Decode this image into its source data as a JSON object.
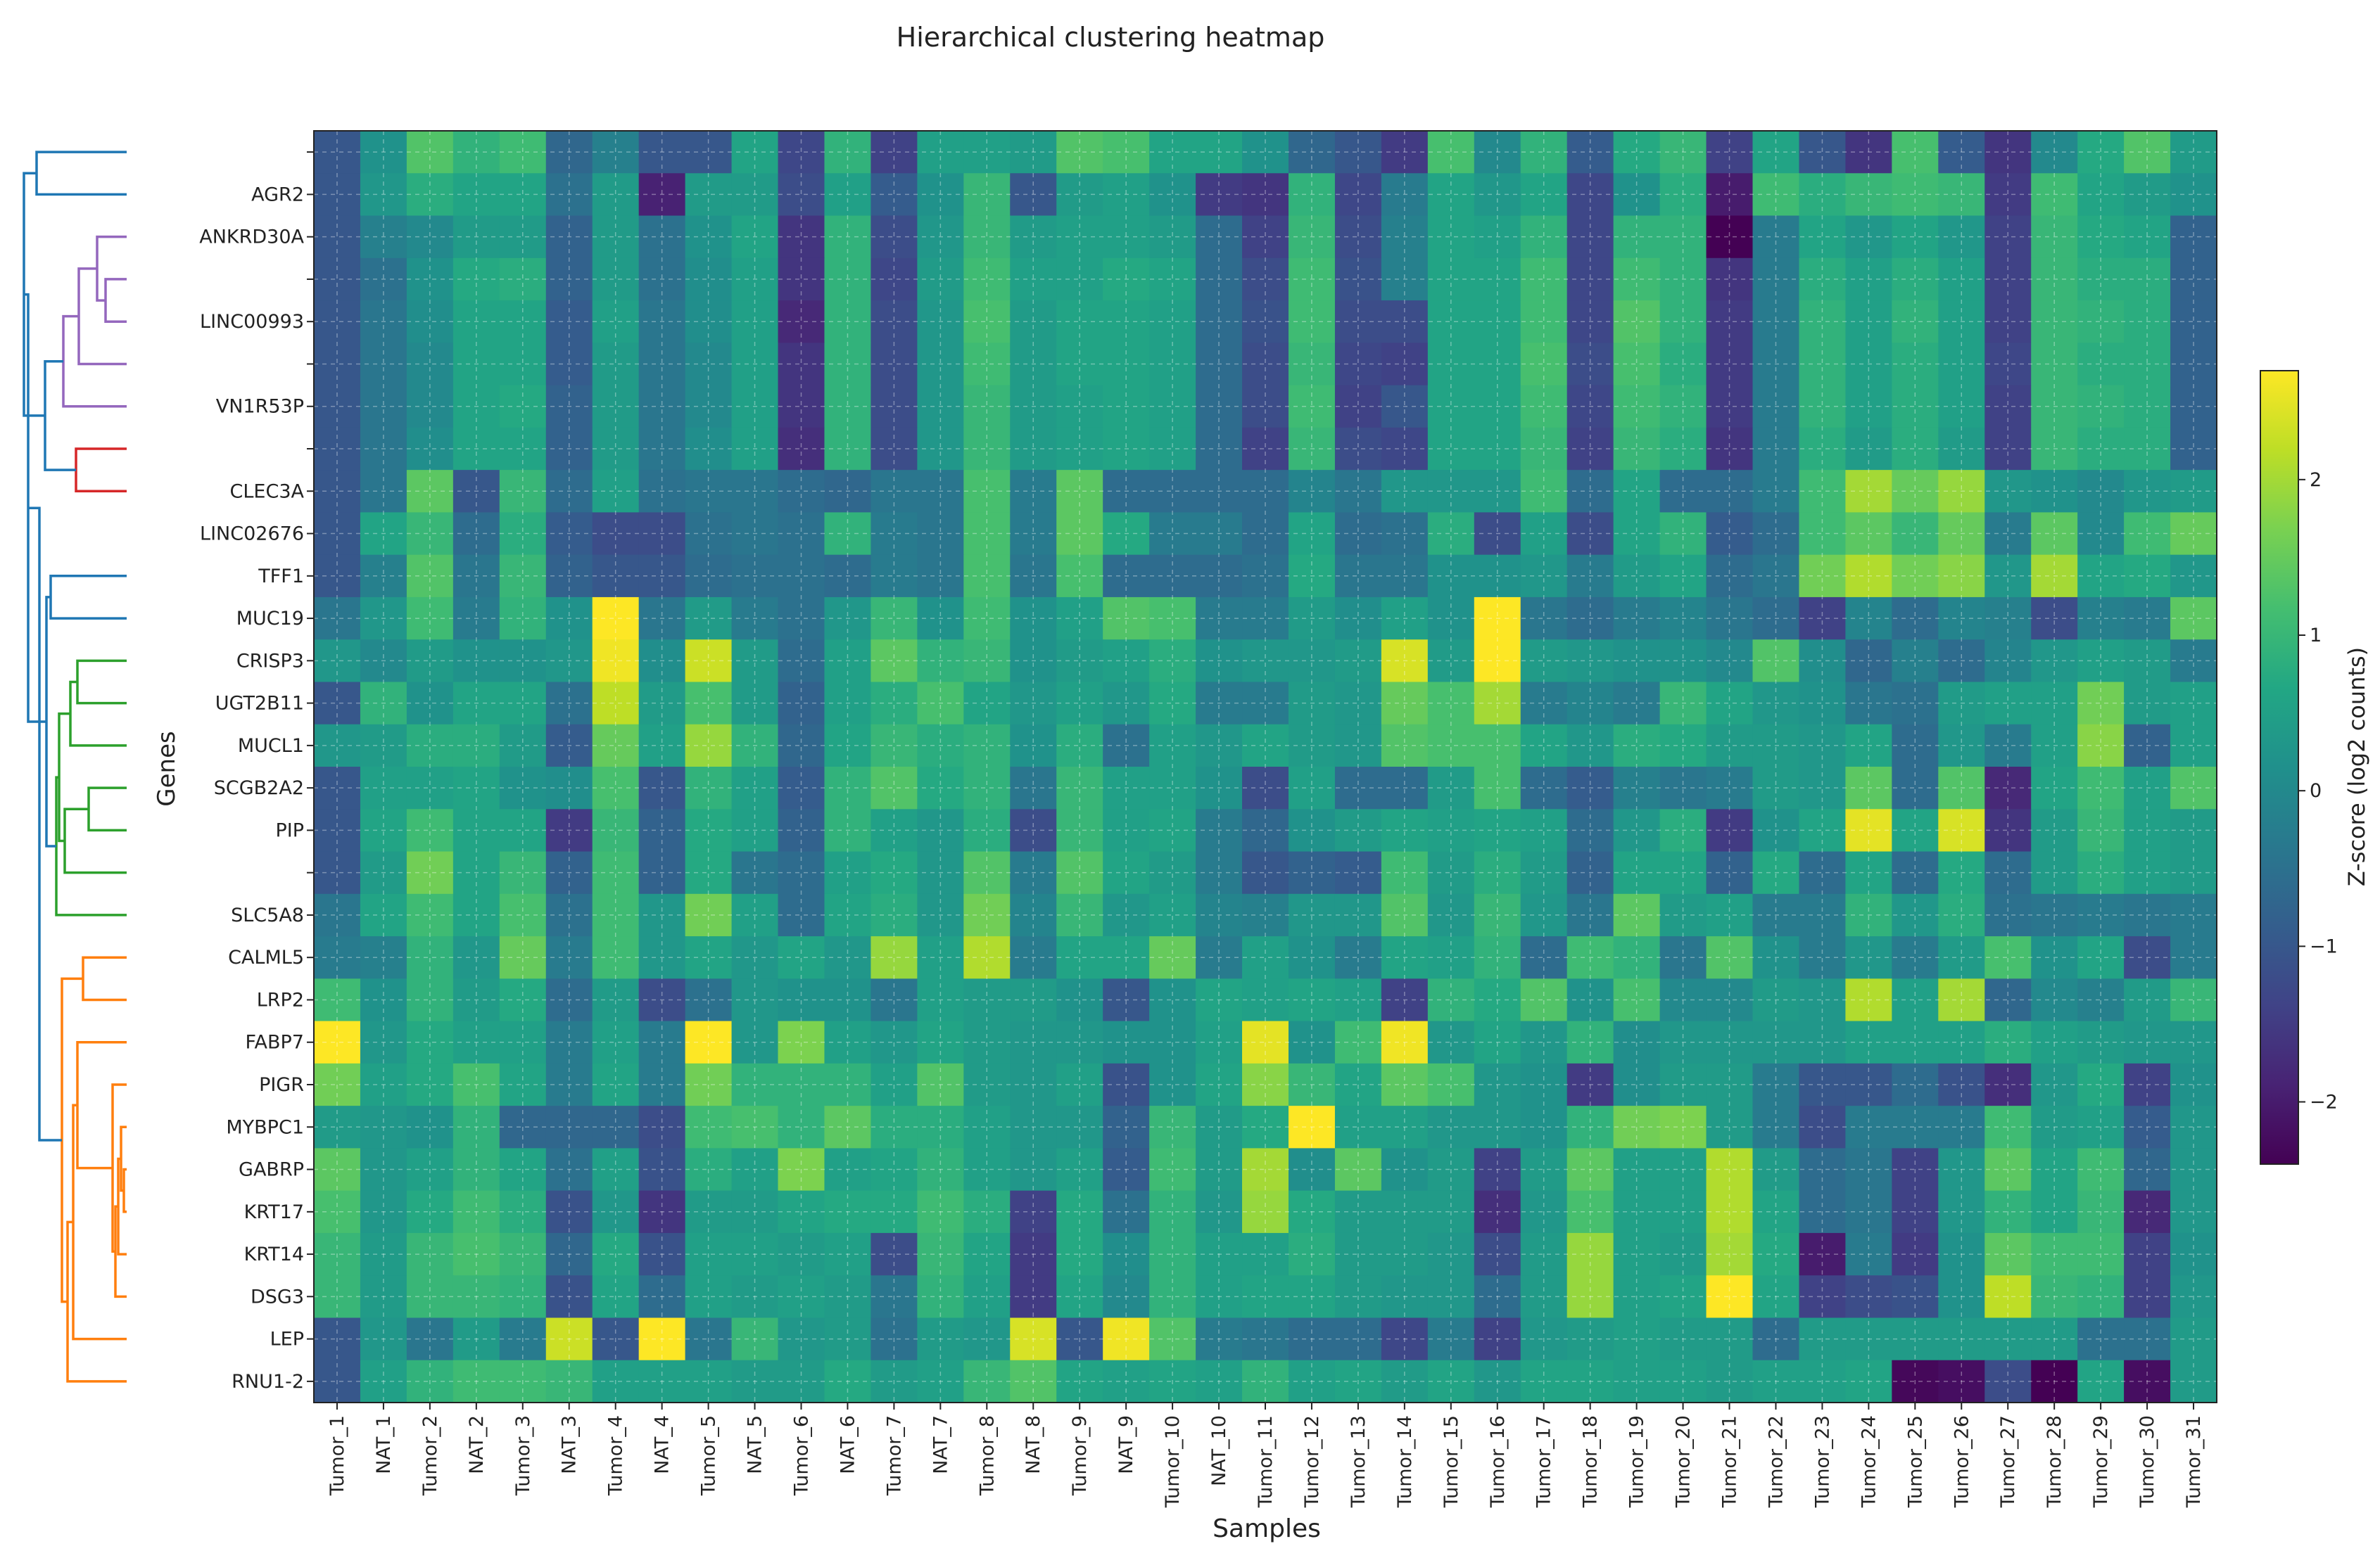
{
  "chart_data": {
    "type": "heatmap",
    "title": "Hierarchical clustering heatmap",
    "xlabel": "Samples",
    "ylabel": "Genes",
    "x": [
      "Tumor_1",
      "NAT_1",
      "Tumor_2",
      "NAT_2",
      "Tumor_3",
      "NAT_3",
      "Tumor_4",
      "NAT_4",
      "Tumor_5",
      "NAT_5",
      "Tumor_6",
      "NAT_6",
      "Tumor_7",
      "NAT_7",
      "Tumor_8",
      "NAT_8",
      "Tumor_9",
      "NAT_9",
      "Tumor_10",
      "NAT_10",
      "Tumor_11",
      "Tumor_12",
      "Tumor_13",
      "Tumor_14",
      "Tumor_15",
      "Tumor_16",
      "Tumor_17",
      "Tumor_18",
      "Tumor_19",
      "Tumor_20",
      "Tumor_21",
      "Tumor_22",
      "Tumor_23",
      "Tumor_24",
      "Tumor_25",
      "Tumor_26",
      "Tumor_27",
      "Tumor_28",
      "Tumor_29",
      "Tumor_30",
      "Tumor_31"
    ],
    "y": [
      "",
      "AGR2",
      "ANKRD30A",
      "",
      "LINC00993",
      "",
      "VN1R53P",
      "",
      "CLEC3A",
      "LINC02676",
      "TFF1",
      "MUC19",
      "CRISP3",
      "UGT2B11",
      "MUCL1",
      "SCGB2A2",
      "PIP",
      "",
      "SLC5A8",
      "CALML5",
      "LRP2",
      "FABP7",
      "PIGR",
      "MYBPC1",
      "GABRP",
      "KRT17",
      "KRT14",
      "DSG3",
      "LEP",
      "RNU1-2"
    ],
    "colorbar": {
      "label": "Z-score (log2 counts)",
      "min": -2.4,
      "max": 2.7,
      "ticks": [
        -2,
        -1,
        0,
        1,
        2
      ],
      "tick_labels": [
        "−2",
        "−1",
        "0",
        "1",
        "2"
      ],
      "colormap": "viridis"
    },
    "grid": true,
    "dendrogram": {
      "side": "left",
      "cluster_colors": [
        "#1f77b4",
        "#9467bd",
        "#d62728",
        "#2ca02c",
        "#ff7f0e"
      ]
    },
    "values": [
      [
        -1.0,
        0.2,
        1.3,
        0.9,
        1.1,
        -0.7,
        -0.2,
        -1.0,
        -1.0,
        0.6,
        -1.3,
        0.9,
        -1.4,
        0.5,
        0.5,
        0.4,
        1.3,
        1.2,
        0.6,
        0.6,
        0.2,
        -0.7,
        -1.0,
        -1.5,
        1.2,
        0.0,
        0.9,
        -0.9,
        0.7,
        1.0,
        -1.4,
        0.6,
        -1.0,
        -1.6,
        1.2,
        -0.9,
        -1.6,
        0.0,
        0.7,
        1.3,
        0.4
      ],
      [
        -1.0,
        0.3,
        0.8,
        0.6,
        0.6,
        -0.5,
        0.4,
        -1.9,
        0.4,
        0.4,
        -1.2,
        0.5,
        -0.9,
        0.2,
        1.0,
        -1.0,
        0.4,
        0.5,
        0.2,
        -1.5,
        -1.6,
        0.9,
        -1.3,
        -0.3,
        0.6,
        0.3,
        0.6,
        -1.3,
        0.2,
        0.8,
        -2.0,
        1.1,
        0.8,
        1.0,
        1.1,
        1.0,
        -1.5,
        1.1,
        0.6,
        0.4,
        0.2
      ],
      [
        -1.0,
        -0.2,
        0.0,
        0.4,
        0.4,
        -0.8,
        0.4,
        -0.5,
        0.2,
        0.6,
        -1.6,
        0.9,
        -1.2,
        0.3,
        1.0,
        0.4,
        0.5,
        0.5,
        0.4,
        -0.6,
        -1.4,
        1.0,
        -1.2,
        -0.2,
        0.6,
        0.5,
        0.9,
        -1.3,
        0.9,
        0.9,
        -2.4,
        -0.3,
        0.6,
        0.3,
        0.6,
        0.3,
        -1.4,
        1.0,
        0.7,
        0.6,
        -0.8
      ],
      [
        -1.0,
        -0.5,
        0.2,
        0.7,
        0.8,
        -0.8,
        0.4,
        -0.5,
        0.1,
        0.5,
        -1.6,
        0.9,
        -1.3,
        0.4,
        1.1,
        0.5,
        0.5,
        0.7,
        0.6,
        -0.6,
        -1.2,
        1.1,
        -1.1,
        -0.2,
        0.6,
        0.6,
        1.1,
        -1.3,
        1.1,
        0.9,
        -1.6,
        -0.3,
        0.8,
        0.5,
        0.8,
        0.5,
        -1.4,
        1.0,
        0.8,
        0.8,
        -0.8
      ],
      [
        -1.0,
        -0.4,
        0.1,
        0.6,
        0.6,
        -0.9,
        0.5,
        -0.4,
        0.1,
        0.5,
        -1.8,
        0.9,
        -1.2,
        0.3,
        1.2,
        0.4,
        0.6,
        0.6,
        0.5,
        -0.6,
        -1.1,
        1.1,
        -1.2,
        -1.2,
        0.6,
        0.6,
        1.1,
        -1.3,
        1.3,
        0.9,
        -1.5,
        -0.3,
        0.9,
        0.5,
        0.9,
        0.5,
        -1.4,
        1.0,
        0.9,
        0.8,
        -0.8
      ],
      [
        -1.0,
        -0.4,
        0.0,
        0.6,
        0.6,
        -0.9,
        0.4,
        -0.4,
        0.0,
        0.5,
        -1.6,
        0.9,
        -1.2,
        0.3,
        1.1,
        0.4,
        0.6,
        0.6,
        0.5,
        -0.6,
        -1.2,
        1.0,
        -1.3,
        -1.4,
        0.6,
        0.6,
        1.2,
        -1.2,
        1.2,
        0.8,
        -1.5,
        -0.3,
        0.9,
        0.5,
        0.8,
        0.5,
        -1.3,
        1.0,
        0.8,
        0.8,
        -0.8
      ],
      [
        -1.0,
        -0.4,
        0.0,
        0.6,
        0.7,
        -0.8,
        0.4,
        -0.4,
        0.0,
        0.5,
        -1.6,
        0.9,
        -1.2,
        0.3,
        1.0,
        0.4,
        0.5,
        0.6,
        0.5,
        -0.6,
        -1.2,
        1.1,
        -1.4,
        -1.0,
        0.6,
        0.6,
        1.1,
        -1.3,
        1.1,
        0.9,
        -1.5,
        -0.3,
        0.9,
        0.5,
        0.8,
        0.5,
        -1.4,
        1.0,
        0.9,
        0.8,
        -0.8
      ],
      [
        -1.0,
        -0.4,
        0.1,
        0.6,
        0.6,
        -0.8,
        0.4,
        -0.4,
        0.1,
        0.5,
        -1.7,
        0.9,
        -1.2,
        0.3,
        1.0,
        0.4,
        0.5,
        0.6,
        0.5,
        -0.6,
        -1.4,
        1.0,
        -1.2,
        -1.3,
        0.6,
        0.6,
        1.0,
        -1.4,
        1.0,
        0.8,
        -1.6,
        -0.3,
        0.8,
        0.4,
        0.8,
        0.4,
        -1.4,
        1.0,
        0.8,
        0.8,
        -0.8
      ],
      [
        -1.0,
        -0.4,
        1.4,
        -1.0,
        1.0,
        -0.6,
        0.5,
        -0.5,
        -0.4,
        -0.4,
        -0.6,
        -0.7,
        -0.4,
        -0.4,
        1.2,
        -0.3,
        1.4,
        -0.6,
        -0.6,
        -0.6,
        -0.6,
        -0.1,
        -0.4,
        0.3,
        0.3,
        0.3,
        1.1,
        -0.6,
        0.6,
        -0.6,
        -0.6,
        -0.3,
        1.1,
        2.0,
        1.5,
        1.9,
        0.3,
        0.2,
        0.0,
        0.3,
        0.4
      ],
      [
        -1.0,
        0.6,
        1.0,
        -0.6,
        0.8,
        -0.9,
        -1.2,
        -1.2,
        -0.5,
        -0.4,
        -0.5,
        0.9,
        -0.3,
        -0.4,
        1.2,
        -0.3,
        1.4,
        0.7,
        -0.3,
        -0.3,
        -0.6,
        0.6,
        -0.6,
        -0.5,
        0.8,
        -1.2,
        0.5,
        -1.2,
        0.6,
        0.9,
        -0.9,
        -0.6,
        1.1,
        1.4,
        1.0,
        1.5,
        -0.3,
        1.4,
        0.0,
        1.1,
        1.5
      ],
      [
        -1.0,
        -0.2,
        1.3,
        -0.4,
        1.0,
        -0.8,
        -1.0,
        -1.0,
        -0.6,
        -0.5,
        -0.5,
        -0.6,
        -0.3,
        -0.4,
        1.2,
        -0.4,
        1.2,
        -0.6,
        -0.6,
        -0.6,
        -0.5,
        0.7,
        -0.4,
        -0.4,
        0.2,
        0.2,
        0.3,
        -0.3,
        0.4,
        0.6,
        -0.6,
        -0.4,
        1.6,
        2.1,
        1.6,
        1.8,
        0.3,
        2.0,
        0.6,
        0.7,
        0.3
      ],
      [
        -0.4,
        0.3,
        1.1,
        -0.3,
        0.9,
        0.2,
        2.7,
        -0.4,
        0.4,
        -0.3,
        -0.5,
        0.3,
        1.0,
        0.2,
        1.1,
        0.2,
        0.5,
        1.3,
        1.2,
        -0.3,
        -0.3,
        0.4,
        0.1,
        0.5,
        0.2,
        2.7,
        -0.4,
        -0.6,
        -0.3,
        -0.1,
        -0.4,
        -0.6,
        -1.4,
        -0.1,
        -0.6,
        -0.1,
        -0.2,
        -1.2,
        -0.2,
        -0.3,
        1.4
      ],
      [
        0.3,
        0.0,
        0.4,
        0.2,
        0.2,
        0.3,
        2.6,
        0.1,
        2.3,
        0.4,
        -0.6,
        0.5,
        1.4,
        0.9,
        1.0,
        0.2,
        0.4,
        0.5,
        0.8,
        0.2,
        0.3,
        0.3,
        0.4,
        2.4,
        0.4,
        2.7,
        0.4,
        0.3,
        0.2,
        0.2,
        0.0,
        1.3,
        0.1,
        -0.7,
        -0.2,
        -0.6,
        -0.1,
        0.3,
        0.5,
        0.4,
        -0.3
      ],
      [
        -1.0,
        0.9,
        0.2,
        0.6,
        0.6,
        -0.5,
        2.2,
        0.4,
        1.2,
        0.4,
        -0.8,
        0.5,
        0.8,
        1.2,
        0.6,
        0.3,
        0.5,
        0.3,
        0.7,
        -0.3,
        -0.3,
        0.4,
        0.3,
        1.5,
        1.2,
        2.0,
        -0.3,
        -0.1,
        -0.3,
        1.0,
        0.6,
        0.3,
        0.2,
        -0.4,
        -0.5,
        0.4,
        0.5,
        0.5,
        1.6,
        0.4,
        0.5
      ],
      [
        0.3,
        0.4,
        0.8,
        0.8,
        0.4,
        -0.9,
        1.5,
        0.5,
        1.9,
        0.9,
        -0.7,
        0.6,
        1.0,
        0.8,
        0.9,
        0.2,
        0.8,
        -0.5,
        0.5,
        0.3,
        0.6,
        0.4,
        0.3,
        1.3,
        1.2,
        1.2,
        0.6,
        0.3,
        0.8,
        0.7,
        0.4,
        0.4,
        0.3,
        0.6,
        -0.6,
        0.3,
        -0.3,
        0.5,
        1.8,
        -0.8,
        0.5
      ],
      [
        -1.0,
        0.5,
        0.5,
        0.6,
        0.2,
        0.1,
        1.2,
        -1.0,
        0.9,
        0.5,
        -0.9,
        0.9,
        1.3,
        0.7,
        0.9,
        -0.4,
        1.0,
        0.5,
        0.5,
        0.2,
        -1.2,
        0.5,
        -0.6,
        -0.6,
        0.4,
        1.2,
        -0.6,
        -0.9,
        -0.2,
        -0.4,
        -0.3,
        0.4,
        0.3,
        1.4,
        -0.6,
        1.3,
        -1.8,
        0.6,
        1.1,
        0.5,
        1.3
      ],
      [
        -1.0,
        0.6,
        1.1,
        0.6,
        0.6,
        -1.5,
        1.0,
        -0.8,
        0.7,
        0.5,
        -0.8,
        0.9,
        0.5,
        0.3,
        0.8,
        -1.2,
        1.0,
        0.5,
        0.6,
        -0.3,
        -0.7,
        0.2,
        0.4,
        0.6,
        0.5,
        0.6,
        0.5,
        -0.6,
        0.3,
        0.8,
        -1.5,
        0.2,
        0.6,
        2.5,
        0.6,
        2.4,
        -1.6,
        0.4,
        1.0,
        0.5,
        0.4
      ],
      [
        -1.0,
        0.4,
        1.6,
        0.6,
        1.0,
        -0.8,
        1.1,
        -0.8,
        0.7,
        -0.4,
        -0.6,
        0.5,
        0.7,
        0.3,
        1.3,
        -0.3,
        1.3,
        0.6,
        0.4,
        -0.3,
        -1.0,
        -0.8,
        -0.9,
        1.1,
        0.4,
        0.8,
        0.4,
        -0.8,
        0.6,
        0.6,
        -0.8,
        0.7,
        -0.6,
        0.6,
        -0.6,
        0.7,
        -0.6,
        0.4,
        0.8,
        0.5,
        0.4
      ],
      [
        -0.4,
        0.6,
        1.1,
        0.6,
        1.2,
        -0.5,
        1.1,
        0.3,
        1.6,
        0.5,
        -0.6,
        0.6,
        0.8,
        0.3,
        1.6,
        -0.1,
        1.0,
        0.3,
        0.5,
        -0.1,
        -0.2,
        0.3,
        0.3,
        1.3,
        0.3,
        1.0,
        0.3,
        -0.4,
        1.4,
        0.4,
        0.5,
        -0.3,
        -0.3,
        0.9,
        0.3,
        0.8,
        -0.5,
        -0.4,
        -0.3,
        -0.4,
        -0.3
      ],
      [
        -0.3,
        -0.2,
        0.9,
        0.3,
        1.5,
        -0.3,
        1.1,
        0.3,
        0.6,
        0.3,
        0.6,
        0.3,
        1.9,
        0.5,
        2.1,
        -0.3,
        0.6,
        0.6,
        1.5,
        -0.3,
        0.5,
        0.2,
        -0.3,
        0.6,
        0.5,
        0.9,
        -0.6,
        1.1,
        0.9,
        -0.4,
        1.3,
        0.2,
        -0.3,
        0.3,
        -0.3,
        0.4,
        1.2,
        0.2,
        0.6,
        -1.2,
        -0.3
      ],
      [
        1.1,
        0.2,
        0.9,
        0.4,
        0.7,
        -0.6,
        0.4,
        -1.2,
        -0.5,
        0.3,
        0.2,
        0.2,
        -0.4,
        0.5,
        0.4,
        0.4,
        0.2,
        -1.0,
        0.2,
        0.6,
        0.5,
        0.6,
        0.5,
        -1.4,
        0.9,
        0.7,
        1.3,
        0.2,
        1.2,
        0.0,
        0.0,
        0.4,
        0.3,
        2.1,
        0.5,
        2.0,
        -0.7,
        0.0,
        -0.2,
        0.4,
        1.0
      ],
      [
        2.7,
        0.3,
        0.7,
        0.5,
        0.5,
        -0.3,
        0.5,
        -0.3,
        2.7,
        0.3,
        1.7,
        0.5,
        0.3,
        0.6,
        0.4,
        0.3,
        0.3,
        0.2,
        0.2,
        0.5,
        2.5,
        0.2,
        1.1,
        2.6,
        0.3,
        0.6,
        0.3,
        0.9,
        0.1,
        0.3,
        0.3,
        0.3,
        0.3,
        0.5,
        0.5,
        0.5,
        0.8,
        0.5,
        0.4,
        0.3,
        0.3
      ],
      [
        1.6,
        0.5,
        0.7,
        1.2,
        0.6,
        -0.3,
        0.6,
        -0.3,
        1.6,
        0.9,
        0.9,
        0.9,
        0.5,
        1.3,
        0.4,
        0.3,
        0.5,
        -1.1,
        0.2,
        0.6,
        1.8,
        1.0,
        0.6,
        1.4,
        1.2,
        0.3,
        0.2,
        -1.5,
        0.1,
        0.4,
        0.4,
        -0.3,
        -1.0,
        -1.0,
        -0.6,
        -1.1,
        -1.7,
        0.3,
        0.7,
        -1.4,
        0.2
      ],
      [
        0.4,
        0.3,
        0.2,
        0.9,
        -0.7,
        -0.7,
        -0.7,
        -1.2,
        1.1,
        1.2,
        0.9,
        1.4,
        0.8,
        0.8,
        0.5,
        0.3,
        0.3,
        -0.8,
        1.0,
        0.4,
        0.7,
        2.7,
        0.5,
        0.5,
        0.3,
        0.3,
        0.2,
        0.9,
        1.6,
        1.7,
        0.4,
        -0.3,
        -1.2,
        -0.3,
        -0.3,
        -0.3,
        1.1,
        0.4,
        0.5,
        -0.9,
        0.3
      ],
      [
        1.4,
        0.3,
        0.5,
        0.9,
        0.6,
        -0.5,
        0.5,
        -1.1,
        0.8,
        0.5,
        1.7,
        0.5,
        0.6,
        0.9,
        0.5,
        0.3,
        0.5,
        -0.9,
        1.1,
        0.4,
        2.0,
        0.1,
        1.4,
        0.2,
        0.4,
        -1.4,
        0.4,
        1.4,
        0.5,
        0.5,
        2.1,
        0.4,
        -0.6,
        -0.4,
        -1.4,
        0.3,
        1.4,
        0.6,
        1.1,
        -0.7,
        0.3
      ],
      [
        1.2,
        0.3,
        0.7,
        1.1,
        0.8,
        -1.1,
        0.3,
        -1.6,
        0.4,
        0.4,
        0.6,
        0.7,
        0.7,
        1.1,
        0.8,
        -1.4,
        0.7,
        -0.5,
        0.9,
        0.3,
        1.9,
        0.7,
        0.4,
        0.4,
        0.4,
        -1.7,
        0.3,
        1.2,
        0.5,
        0.5,
        2.1,
        0.6,
        -0.6,
        -0.4,
        -1.4,
        0.3,
        0.9,
        0.6,
        1.0,
        -1.8,
        0.3
      ],
      [
        1.0,
        0.4,
        1.0,
        1.2,
        1.0,
        -0.7,
        0.7,
        -1.1,
        0.5,
        0.5,
        0.4,
        0.5,
        -1.2,
        1.0,
        0.6,
        -1.5,
        0.7,
        0.1,
        0.9,
        0.5,
        0.5,
        0.8,
        0.4,
        0.4,
        0.3,
        -1.2,
        0.4,
        1.9,
        0.5,
        0.4,
        2.0,
        0.7,
        -2.0,
        -0.3,
        -1.5,
        0.2,
        1.4,
        1.1,
        1.1,
        -1.4,
        0.2
      ],
      [
        1.0,
        0.4,
        1.0,
        1.0,
        0.9,
        -1.1,
        0.6,
        -0.6,
        0.5,
        0.4,
        0.5,
        0.4,
        -0.4,
        0.9,
        0.5,
        -1.5,
        0.6,
        0.0,
        0.9,
        0.5,
        0.6,
        0.6,
        0.4,
        0.3,
        0.3,
        -0.6,
        0.4,
        1.9,
        0.5,
        0.6,
        2.7,
        0.6,
        -1.4,
        -1.2,
        -1.1,
        0.2,
        2.2,
        1.0,
        0.9,
        -1.4,
        0.3
      ],
      [
        -1.0,
        0.3,
        -0.4,
        0.4,
        -0.3,
        2.3,
        -1.0,
        2.7,
        -0.4,
        1.0,
        0.3,
        0.4,
        -0.5,
        0.4,
        0.3,
        2.4,
        -1.0,
        2.6,
        1.3,
        -0.3,
        -0.4,
        -0.6,
        -0.6,
        -1.3,
        -0.3,
        -1.4,
        0.3,
        0.4,
        0.5,
        0.4,
        0.4,
        -0.6,
        0.4,
        0.4,
        0.4,
        0.4,
        0.4,
        0.4,
        -0.5,
        -0.5,
        0.4
      ],
      [
        -1.0,
        0.5,
        0.9,
        1.1,
        1.1,
        1.0,
        0.5,
        0.5,
        0.5,
        0.4,
        0.4,
        0.7,
        0.4,
        0.5,
        1.0,
        1.3,
        0.6,
        0.5,
        0.6,
        0.5,
        0.9,
        0.5,
        0.6,
        0.4,
        0.6,
        0.3,
        0.6,
        0.6,
        0.5,
        0.5,
        0.4,
        0.5,
        0.5,
        0.6,
        -2.3,
        -2.2,
        -1.2,
        -2.4,
        0.6,
        -2.2,
        0.4
      ]
    ]
  }
}
